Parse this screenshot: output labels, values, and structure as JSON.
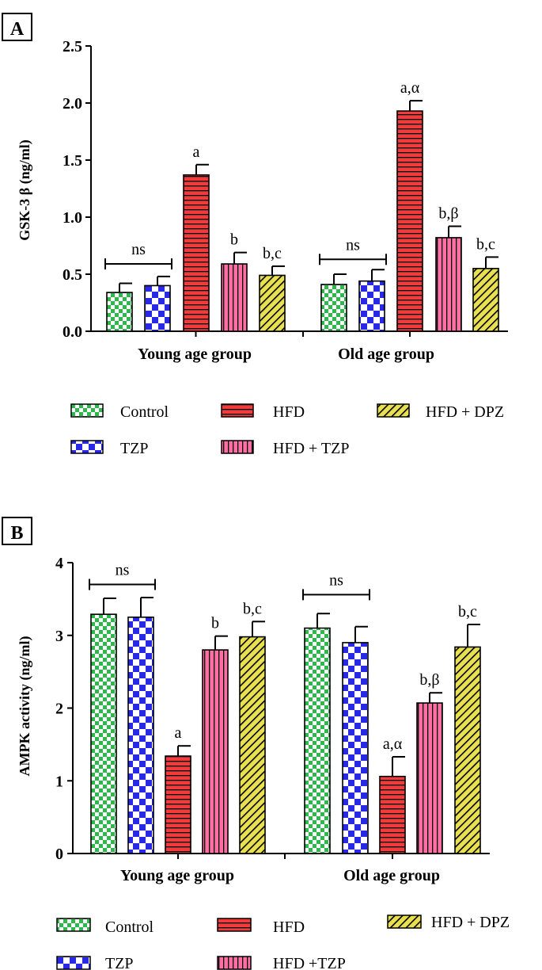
{
  "colors": {
    "control": "#2db84b",
    "tzp": "#2828e6",
    "hfd": "#f03c3c",
    "hfd_tzp": "#ff6fa6",
    "hfd_dpz": "#e8e050"
  },
  "chart_data": [
    {
      "type": "bar",
      "panel_label": "A",
      "ylabel": "GSK-3 β (ng/ml)",
      "ylim": [
        0,
        2.5
      ],
      "yticks": [
        "0.0",
        "0.5",
        "1.0",
        "1.5",
        "2.0",
        "2.5"
      ],
      "categories": [
        "Young age group",
        "Old age group"
      ],
      "series": [
        {
          "name": "Control",
          "values": [
            0.34,
            0.41
          ],
          "errors": [
            0.08,
            0.09
          ],
          "labels": [
            "",
            ""
          ],
          "pattern": "checker-small"
        },
        {
          "name": "TZP",
          "values": [
            0.4,
            0.44
          ],
          "errors": [
            0.08,
            0.1
          ],
          "labels": [
            "",
            ""
          ],
          "pattern": "checker-large"
        },
        {
          "name": "HFD",
          "values": [
            1.37,
            1.93
          ],
          "errors": [
            0.09,
            0.09
          ],
          "labels": [
            "a",
            "a,α"
          ],
          "pattern": "horizontal"
        },
        {
          "name": "HFD + TZP",
          "values": [
            0.59,
            0.82
          ],
          "errors": [
            0.1,
            0.1
          ],
          "labels": [
            "b",
            "b,β"
          ],
          "pattern": "vertical"
        },
        {
          "name": "HFD + DPZ",
          "values": [
            0.49,
            0.55
          ],
          "errors": [
            0.08,
            0.1
          ],
          "labels": [
            "b,c",
            "b,c"
          ],
          "pattern": "diagonal"
        }
      ],
      "brackets": [
        {
          "label": "ns",
          "group": 0,
          "from": 0,
          "to": 1,
          "y": 0.59
        },
        {
          "label": "ns",
          "group": 1,
          "from": 0,
          "to": 1,
          "y": 0.63
        }
      ]
    },
    {
      "type": "bar",
      "panel_label": "B",
      "ylabel": "AMPK activity (ng/ml)",
      "ylim": [
        0,
        4
      ],
      "yticks": [
        "0",
        "1",
        "2",
        "3",
        "4"
      ],
      "categories": [
        "Young age group",
        "Old age group"
      ],
      "series": [
        {
          "name": "Control",
          "values": [
            3.29,
            3.1
          ],
          "errors": [
            0.22,
            0.2
          ],
          "labels": [
            "",
            ""
          ],
          "pattern": "checker-small"
        },
        {
          "name": "TZP",
          "values": [
            3.25,
            2.9
          ],
          "errors": [
            0.27,
            0.22
          ],
          "labels": [
            "",
            ""
          ],
          "pattern": "checker-large"
        },
        {
          "name": "HFD",
          "values": [
            1.34,
            1.06
          ],
          "errors": [
            0.14,
            0.27
          ],
          "labels": [
            "a",
            "a,α"
          ],
          "pattern": "horizontal"
        },
        {
          "name": "HFD +TZP",
          "values": [
            2.8,
            2.07
          ],
          "errors": [
            0.19,
            0.14
          ],
          "labels": [
            "b",
            "b,β"
          ],
          "pattern": "vertical"
        },
        {
          "name": "HFD + DPZ",
          "values": [
            2.98,
            2.84
          ],
          "errors": [
            0.21,
            0.31
          ],
          "labels": [
            "b,c",
            "b,c"
          ],
          "pattern": "diagonal"
        }
      ],
      "brackets": [
        {
          "label": "ns",
          "group": 0,
          "from": 0,
          "to": 1,
          "y": 3.7
        },
        {
          "label": "ns",
          "group": 1,
          "from": 0,
          "to": 1,
          "y": 3.56
        }
      ]
    }
  ]
}
